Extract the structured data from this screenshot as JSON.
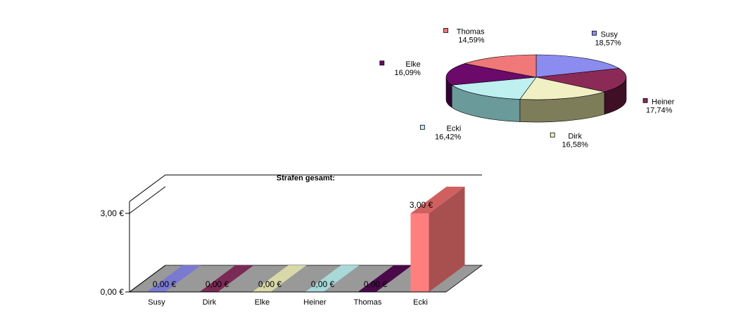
{
  "chart_data": [
    {
      "type": "pie",
      "title": "",
      "legend": "labels-next-to-slices",
      "slices": [
        {
          "name": "Susy",
          "value": 18.57,
          "label": "18,57%",
          "color": "#8b8bf0",
          "side": "#4a4a8a"
        },
        {
          "name": "Heiner",
          "value": 17.74,
          "label": "17,74%",
          "color": "#8b2a57",
          "side": "#3f0f26"
        },
        {
          "name": "Dirk",
          "value": 16.58,
          "label": "16,58%",
          "color": "#f0f0c4",
          "side": "#7d7d5a"
        },
        {
          "name": "Ecki",
          "value": 16.42,
          "label": "16,42%",
          "color": "#bff0f0",
          "side": "#6a9a9a"
        },
        {
          "name": "Elke",
          "value": 16.09,
          "label": "16,09%",
          "color": "#6b0a6b",
          "side": "#320232"
        },
        {
          "name": "Thomas",
          "value": 14.59,
          "label": "14,59%",
          "color": "#f07878",
          "side": "#a84545"
        }
      ]
    },
    {
      "type": "bar",
      "title": "Strafen gesamt:",
      "categories": [
        "Susy",
        "Dirk",
        "Elke",
        "Heiner",
        "Thomas",
        "Ecki"
      ],
      "values": [
        0,
        0,
        0,
        0,
        0,
        3
      ],
      "value_labels": [
        "0,00 €",
        "0,00 €",
        "0,00 €",
        "0,00 €",
        "0,00 €",
        "3,00 €"
      ],
      "colors": [
        "#7a7ad0",
        "#7a2a55",
        "#d8d8a8",
        "#a8d8d8",
        "#4a0a4a",
        "#ff7f7f"
      ],
      "yticks": [
        0,
        3
      ],
      "ytick_labels": [
        "0,00 €",
        "3,00 €"
      ],
      "ylim": [
        0,
        3.45
      ],
      "grid": false
    }
  ]
}
